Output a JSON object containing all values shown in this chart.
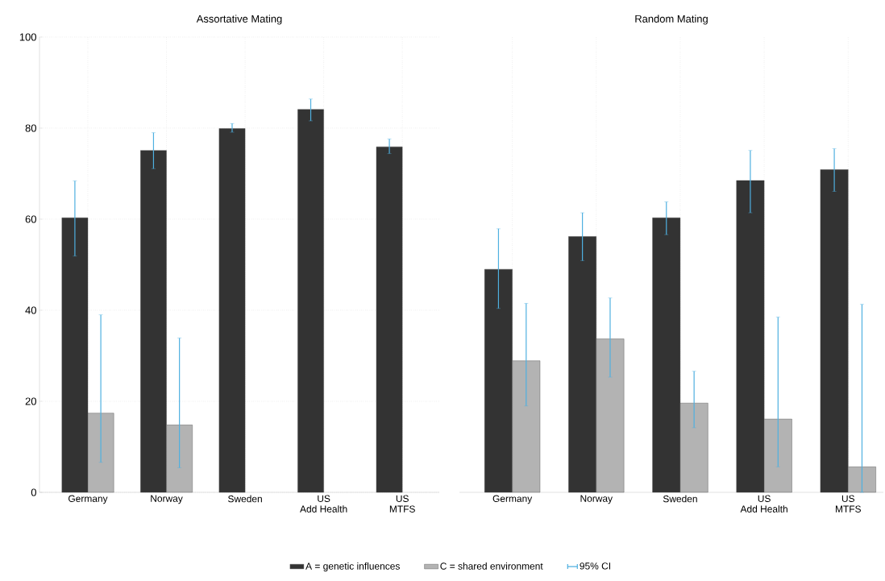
{
  "chart_data": [
    {
      "type": "bar",
      "title": "Assortative Mating",
      "categories": [
        "Germany",
        "Norway",
        "Sweden",
        "US\nAdd Health",
        "US\nMTFS"
      ],
      "series": [
        {
          "name": "A = genetic influences",
          "color": "#333333",
          "values": [
            60.3,
            75.1,
            79.9,
            84.1,
            75.9
          ],
          "errors": [
            [
              51.9,
              68.4
            ],
            [
              71.1,
              79.0
            ],
            [
              79.1,
              81.0
            ],
            [
              81.6,
              86.4
            ],
            [
              74.4,
              77.6
            ]
          ]
        },
        {
          "name": "C = shared environment",
          "color": "#b3b3b3",
          "values": [
            17.4,
            14.8,
            null,
            null,
            null
          ],
          "errors": [
            [
              6.6,
              39.0
            ],
            [
              5.4,
              33.9
            ],
            null,
            null,
            null
          ]
        }
      ],
      "ylim": [
        0,
        100
      ],
      "yticks": [
        0,
        20,
        40,
        60,
        80,
        100
      ],
      "grid": true,
      "legend": "bottom",
      "annotations": [
        "95% CI"
      ]
    },
    {
      "type": "bar",
      "title": "Random Mating",
      "categories": [
        "Germany",
        "Norway",
        "Sweden",
        "US\nAdd Health",
        "US\nMTFS"
      ],
      "series": [
        {
          "color": "#333333",
          "values": [
            49.0,
            56.2,
            60.3,
            68.5,
            70.9
          ],
          "errors": [
            [
              40.4,
              57.9
            ],
            [
              50.9,
              61.4
            ],
            [
              56.6,
              63.8
            ],
            [
              61.4,
              75.1
            ],
            [
              66.1,
              75.5
            ]
          ]
        },
        {
          "color": "#b3b3b3",
          "values": [
            28.9,
            33.7,
            19.6,
            16.1,
            5.6
          ],
          "errors": [
            [
              19.0,
              41.5
            ],
            [
              25.3,
              42.7
            ],
            [
              14.2,
              26.6
            ],
            [
              5.6,
              38.5
            ],
            [
              0,
              41.3
            ]
          ]
        }
      ],
      "ylim": [
        0,
        100
      ],
      "yticks": [
        0,
        20,
        40,
        60,
        80,
        100
      ],
      "grid": true,
      "tick_labels": "x"
    }
  ]
}
